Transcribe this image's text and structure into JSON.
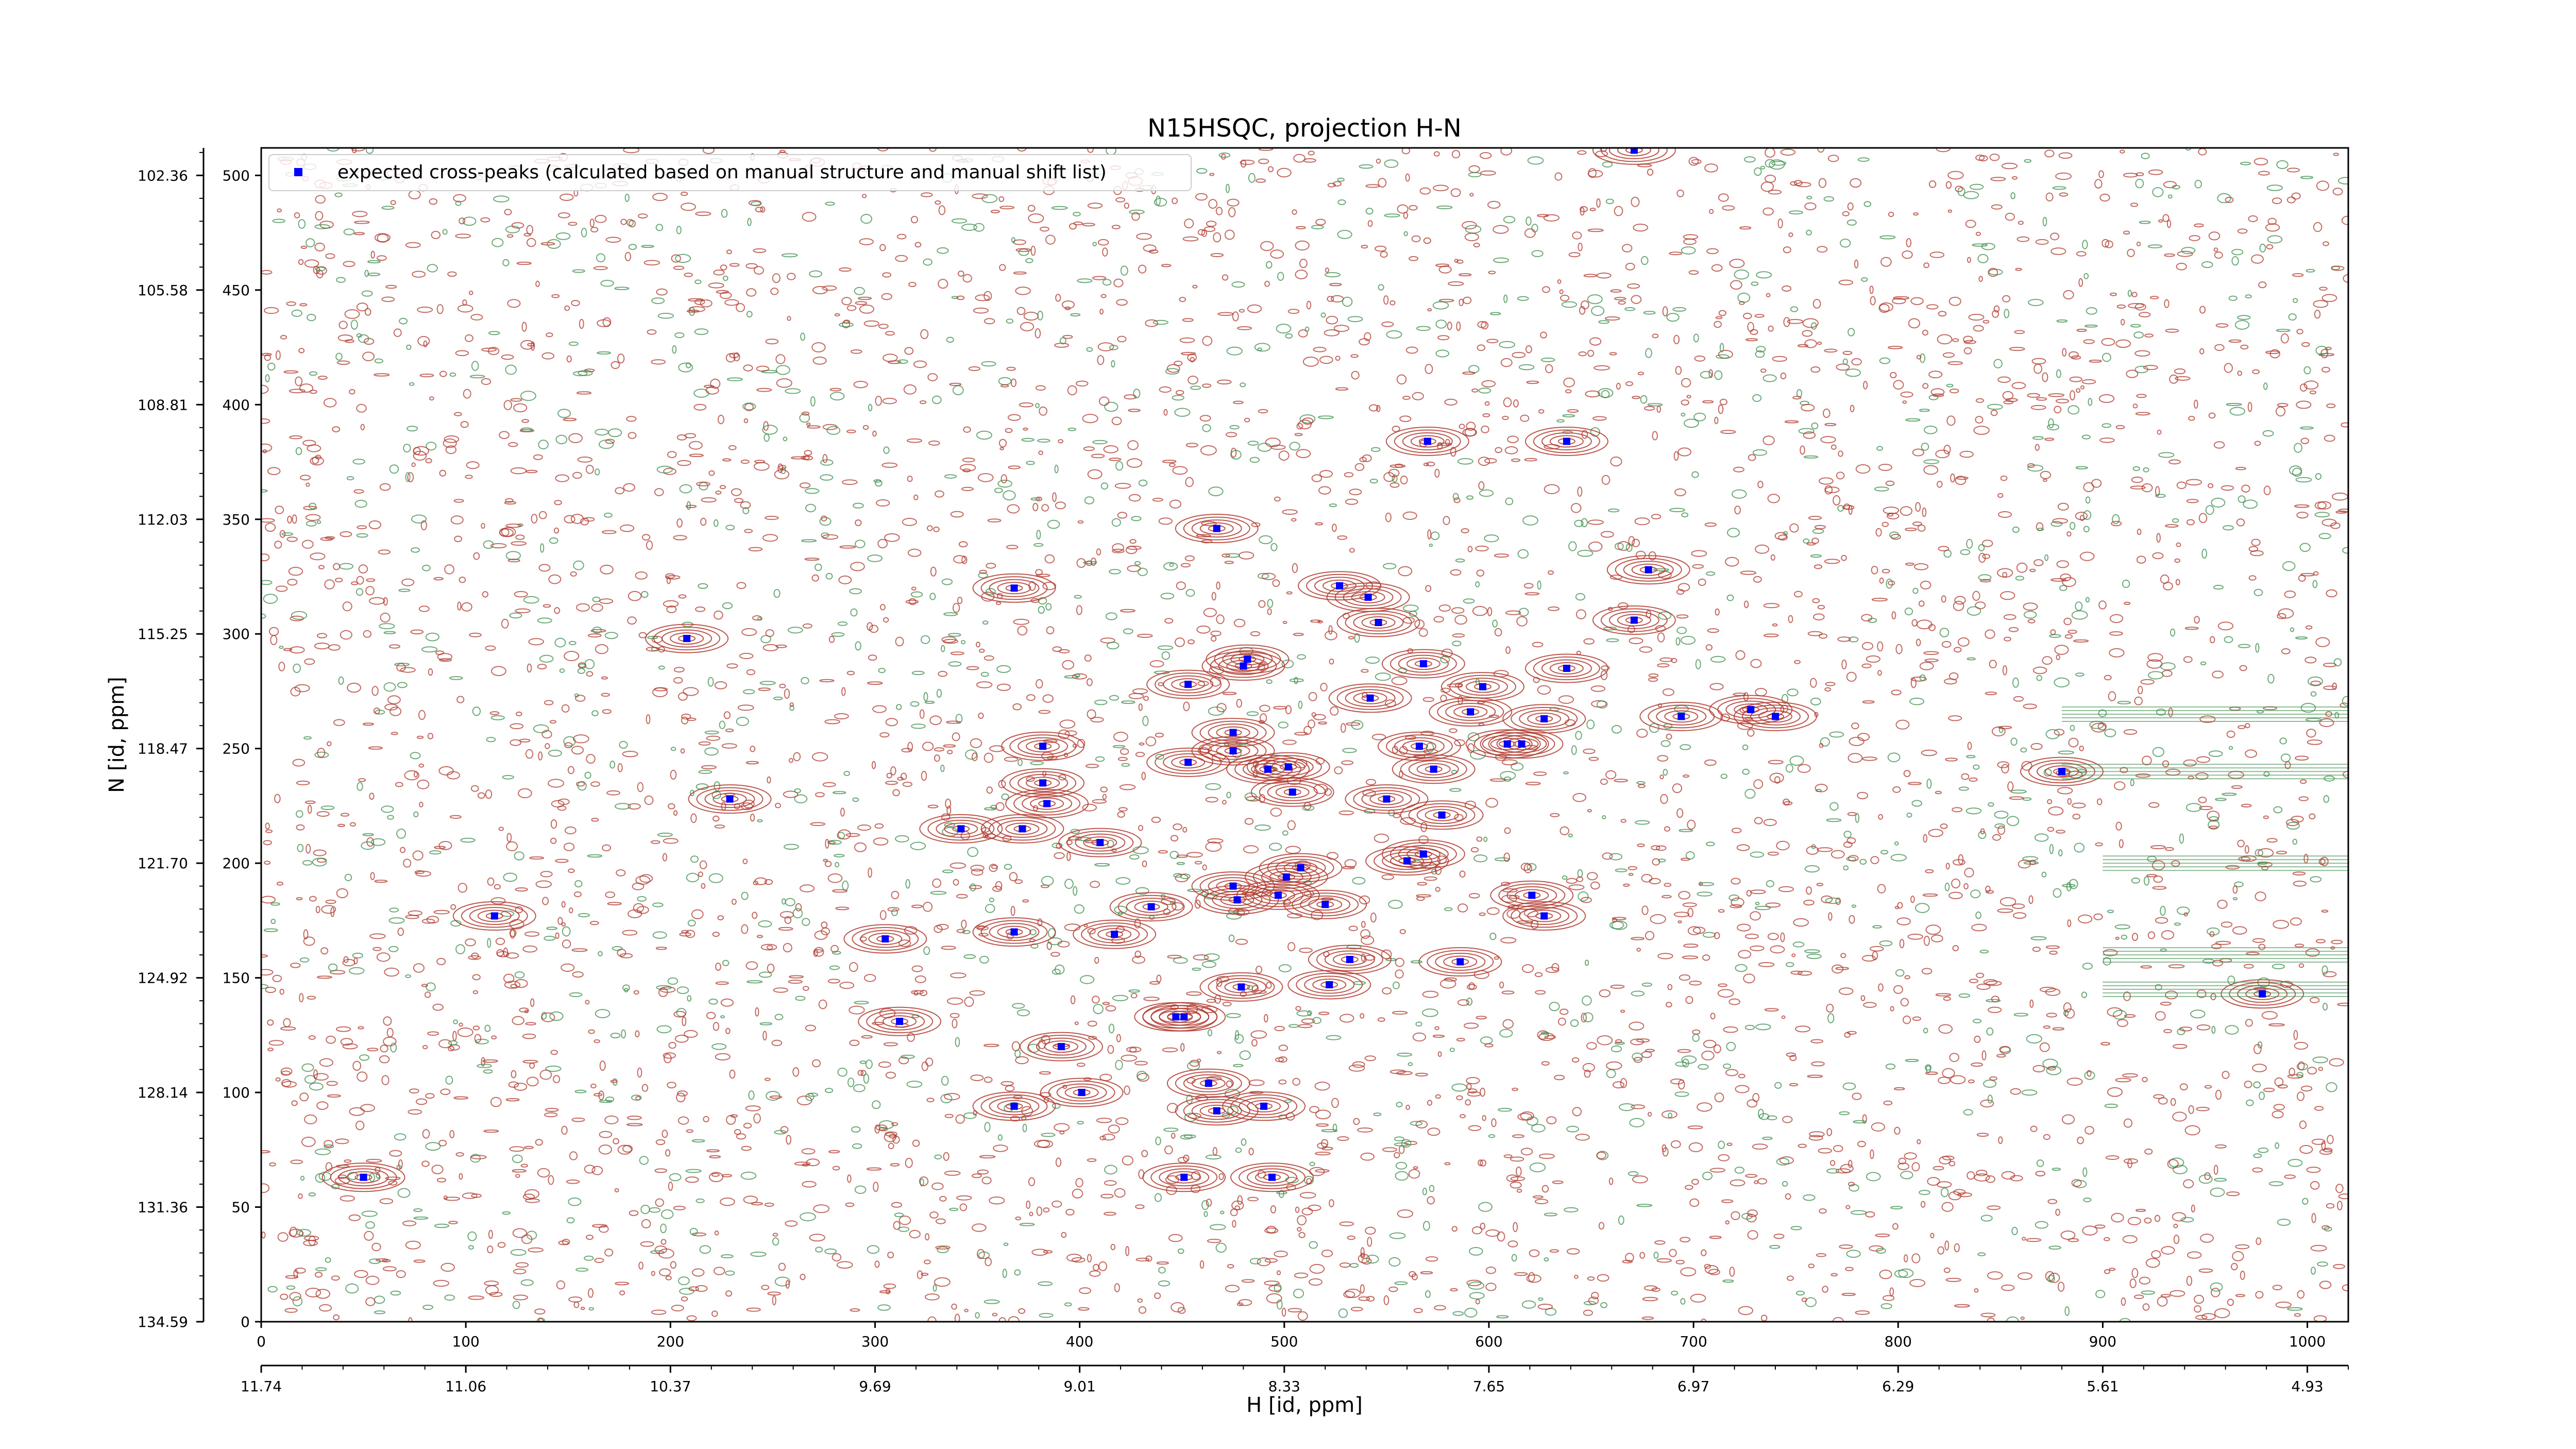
{
  "chart_data": {
    "type": "scatter",
    "title": "N15HSQC, projection H-N",
    "xlabel": "H [id, ppm]",
    "ylabel": "N [id, ppm]",
    "xlim": [
      0,
      1020
    ],
    "ylim": [
      0,
      512
    ],
    "grid": false,
    "legend_placement": "top-left",
    "colors": {
      "positive_contour": "#b03a2e",
      "negative_contour": "#3f8f4f",
      "marker": "#0000ff"
    },
    "x_ticks_index": [
      0,
      100,
      200,
      300,
      400,
      500,
      600,
      700,
      800,
      900,
      1000
    ],
    "x_tick_labels_index": [
      "0",
      "100",
      "200",
      "300",
      "400",
      "500",
      "600",
      "700",
      "800",
      "900",
      "1000"
    ],
    "x_ticks_ppm": [
      0,
      100,
      200,
      300,
      400,
      500,
      600,
      700,
      800,
      900,
      1000
    ],
    "x_tick_labels_ppm": [
      "11.74",
      "11.06",
      "10.37",
      "9.69",
      "9.01",
      "8.33",
      "7.65",
      "6.97",
      "6.29",
      "5.61",
      "4.93"
    ],
    "y_ticks_index": [
      0,
      50,
      100,
      150,
      200,
      250,
      300,
      350,
      400,
      450,
      500
    ],
    "y_tick_labels_index": [
      "0",
      "50",
      "100",
      "150",
      "200",
      "250",
      "300",
      "350",
      "400",
      "450",
      "500"
    ],
    "y_tick_labels_ppm": [
      "134.59",
      "131.36",
      "128.14",
      "124.92",
      "121.70",
      "118.47",
      "115.25",
      "112.03",
      "108.81",
      "105.58",
      "102.36"
    ],
    "series": [
      {
        "name": "expected cross-peaks (calculated based on manual structure and manual shift list)",
        "points": [
          [
            671,
            511
          ],
          [
            570,
            384
          ],
          [
            638,
            384
          ],
          [
            467,
            346
          ],
          [
            678,
            328
          ],
          [
            368,
            320
          ],
          [
            527,
            321
          ],
          [
            541,
            316
          ],
          [
            546,
            305
          ],
          [
            671,
            306
          ],
          [
            208,
            298
          ],
          [
            453,
            278
          ],
          [
            480,
            286
          ],
          [
            482,
            289
          ],
          [
            638,
            285
          ],
          [
            568,
            287
          ],
          [
            597,
            277
          ],
          [
            542,
            272
          ],
          [
            591,
            266
          ],
          [
            627,
            263
          ],
          [
            694,
            264
          ],
          [
            728,
            267
          ],
          [
            740,
            264
          ],
          [
            475,
            257
          ],
          [
            609,
            252
          ],
          [
            616,
            252
          ],
          [
            382,
            251
          ],
          [
            566,
            251
          ],
          [
            475,
            249
          ],
          [
            453,
            244
          ],
          [
            492,
            241
          ],
          [
            502,
            242
          ],
          [
            573,
            241
          ],
          [
            880,
            240
          ],
          [
            382,
            235
          ],
          [
            504,
            231
          ],
          [
            229,
            228
          ],
          [
            550,
            228
          ],
          [
            384,
            226
          ],
          [
            577,
            221
          ],
          [
            342,
            215
          ],
          [
            372,
            215
          ],
          [
            410,
            209
          ],
          [
            568,
            204
          ],
          [
            560,
            201
          ],
          [
            508,
            198
          ],
          [
            501,
            194
          ],
          [
            475,
            190
          ],
          [
            477,
            184
          ],
          [
            497,
            186
          ],
          [
            621,
            186
          ],
          [
            520,
            182
          ],
          [
            435,
            181
          ],
          [
            627,
            177
          ],
          [
            368,
            170
          ],
          [
            417,
            169
          ],
          [
            305,
            167
          ],
          [
            114,
            177
          ],
          [
            532,
            158
          ],
          [
            586,
            157
          ],
          [
            522,
            147
          ],
          [
            479,
            146
          ],
          [
            447,
            133
          ],
          [
            451,
            133
          ],
          [
            312,
            131
          ],
          [
            391,
            120
          ],
          [
            463,
            104
          ],
          [
            401,
            100
          ],
          [
            368,
            94
          ],
          [
            467,
            92
          ],
          [
            490,
            94
          ],
          [
            978,
            143
          ],
          [
            50,
            63
          ],
          [
            451,
            63
          ],
          [
            494,
            63
          ]
        ]
      }
    ]
  }
}
